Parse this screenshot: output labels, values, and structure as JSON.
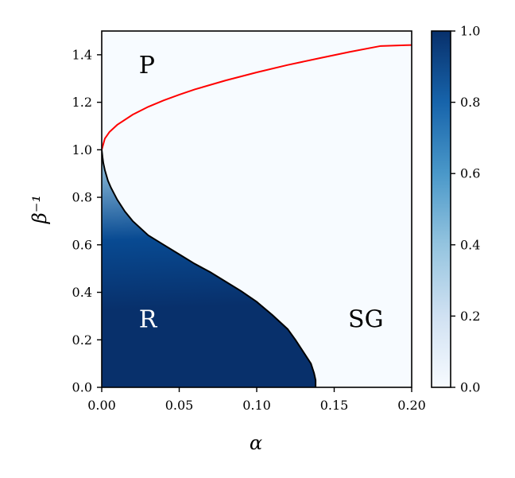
{
  "chart_data": {
    "type": "heatmap",
    "xlabel": "α",
    "ylabel": "β⁻¹",
    "xlim": [
      0.0,
      0.2
    ],
    "ylim": [
      0.0,
      1.5
    ],
    "x_ticks": [
      0.0,
      0.05,
      0.1,
      0.15,
      0.2
    ],
    "x_tick_labels": [
      "0.00",
      "0.05",
      "0.10",
      "0.15",
      "0.20"
    ],
    "y_ticks": [
      0.0,
      0.2,
      0.4,
      0.6,
      0.8,
      1.0,
      1.2,
      1.4
    ],
    "y_tick_labels": [
      "0.0",
      "0.2",
      "0.4",
      "0.6",
      "0.8",
      "1.0",
      "1.2",
      "1.4"
    ],
    "colormap": {
      "name": "Blues",
      "low": "#f7fbff",
      "high": "#08306b"
    },
    "colorbar": {
      "range": [
        0.0,
        1.0
      ],
      "ticks": [
        0.0,
        0.2,
        0.4,
        0.6,
        0.8,
        1.0
      ],
      "tick_labels": [
        "0.0",
        "0.2",
        "0.4",
        "0.6",
        "0.8",
        "1.0"
      ]
    },
    "series": [
      {
        "style": "red line",
        "color": "#ff0000",
        "x": [
          0.0,
          0.002,
          0.005,
          0.01,
          0.02,
          0.03,
          0.04,
          0.05,
          0.06,
          0.08,
          0.1,
          0.12,
          0.14,
          0.16,
          0.18,
          0.2
        ],
        "y": [
          1.0,
          1.047,
          1.075,
          1.105,
          1.148,
          1.181,
          1.208,
          1.232,
          1.254,
          1.292,
          1.326,
          1.357,
          1.385,
          1.412,
          1.437,
          1.441
        ]
      },
      {
        "style": "black boundary",
        "color": "#000000",
        "x": [
          0.0,
          0.0005,
          0.001,
          0.002,
          0.004,
          0.006,
          0.01,
          0.015,
          0.02,
          0.03,
          0.04,
          0.05,
          0.06,
          0.07,
          0.08,
          0.09,
          0.1,
          0.11,
          0.12,
          0.125,
          0.13,
          0.135,
          0.137,
          0.138,
          0.138
        ],
        "y": [
          1.0,
          0.97,
          0.945,
          0.915,
          0.87,
          0.84,
          0.79,
          0.74,
          0.7,
          0.64,
          0.6,
          0.56,
          0.52,
          0.485,
          0.445,
          0.405,
          0.36,
          0.305,
          0.245,
          0.2,
          0.15,
          0.1,
          0.06,
          0.03,
          0.0
        ]
      }
    ],
    "annotations": [
      {
        "text": "P",
        "x": 0.024,
        "y": 1.36,
        "color": "#000000"
      },
      {
        "text": "R",
        "x": 0.024,
        "y": 0.29,
        "color": "#ffffff"
      },
      {
        "text": "SG",
        "x": 0.159,
        "y": 0.29,
        "color": "#000000"
      }
    ]
  }
}
